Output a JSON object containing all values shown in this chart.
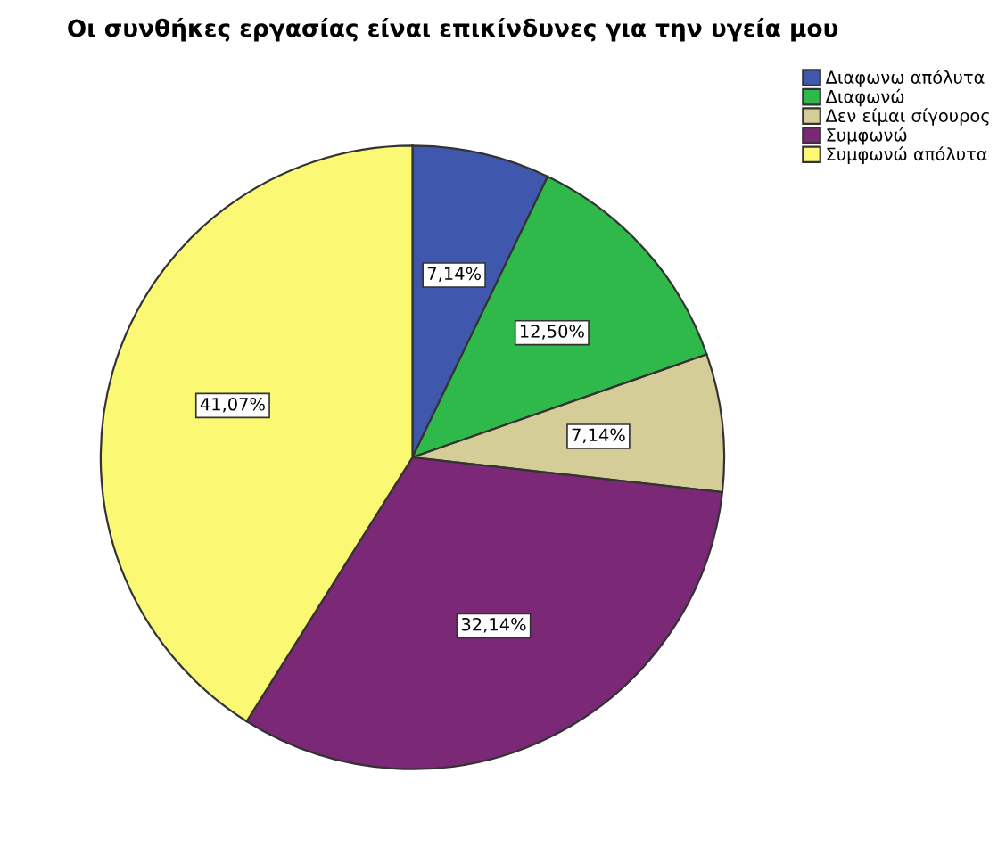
{
  "chart_data": {
    "type": "pie",
    "title": "Οι συνθήκες εργασίας είναι επικίνδυνες για την υγεία μου",
    "categories": [
      "Διαφωνω απόλυτα",
      "Διαφωνώ",
      "Δεν είμαι σίγουρος",
      "Συμφωνώ",
      "Συμφωνώ απόλυτα"
    ],
    "values": [
      7.14,
      12.5,
      7.14,
      32.14,
      41.07
    ],
    "value_labels": [
      "7,14%",
      "12,50%",
      "7,14%",
      "32,14%",
      "41,07%"
    ],
    "colors": [
      "#3f58ad",
      "#2fb94a",
      "#d5cd98",
      "#7b2877",
      "#fbf874"
    ],
    "legend": "top right"
  }
}
